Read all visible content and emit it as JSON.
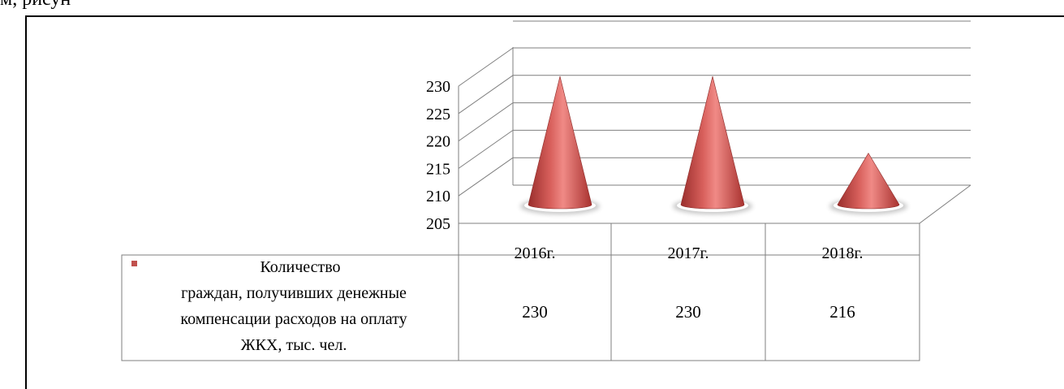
{
  "page": {
    "top_text": "м, рисун"
  },
  "chart_data": {
    "type": "bar",
    "style": "3d-cone",
    "categories": [
      "2016г.",
      "2017г.",
      "2018г."
    ],
    "series": [
      {
        "name": "Количество граждан, получивших денежные компенсации расходов на оплату ЖКХ, тыс. чел.",
        "name_lines": [
          "Количество",
          "граждан, получивших денежные",
          "компенсации расходов на оплату",
          "ЖКХ, тыс. чел."
        ],
        "values": [
          230,
          230,
          216
        ],
        "value_labels": [
          "230",
          "230",
          "216"
        ],
        "color": "#c0504d"
      }
    ],
    "yticks": [
      "205",
      "210",
      "215",
      "220",
      "225",
      "230"
    ],
    "ylim": [
      205,
      230
    ],
    "grid": true,
    "legend": "data-table"
  }
}
